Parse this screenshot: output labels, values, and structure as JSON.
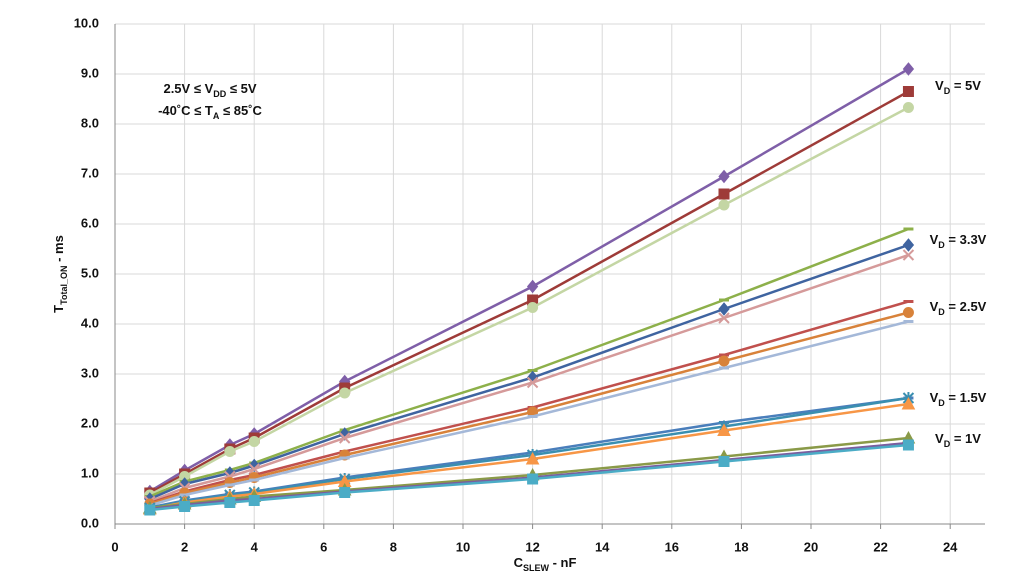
{
  "chart_data": {
    "type": "line",
    "x": [
      1,
      2,
      3.3,
      4,
      6.6,
      12,
      17.5,
      22.8
    ],
    "xlim": [
      0,
      25
    ],
    "xticks": [
      0,
      2,
      4,
      6,
      8,
      10,
      12,
      14,
      16,
      18,
      20,
      22,
      24
    ],
    "ylim": [
      0,
      10
    ],
    "yticks": [
      {
        "value": 0,
        "label": "0.0"
      },
      {
        "value": 1,
        "label": "1.0"
      },
      {
        "value": 2,
        "label": "2.0"
      },
      {
        "value": 3,
        "label": "3.0"
      },
      {
        "value": 4,
        "label": "4.0"
      },
      {
        "value": 5,
        "label": "5.0"
      },
      {
        "value": 6,
        "label": "6.0"
      },
      {
        "value": 7,
        "label": "7.0"
      },
      {
        "value": 8,
        "label": "8.0"
      },
      {
        "value": 9,
        "label": "9.0"
      },
      {
        "value": 10,
        "label": "10.0"
      }
    ],
    "grid": true,
    "xlabel": [
      {
        "text": "C"
      },
      {
        "text": "SLEW",
        "sub": true
      },
      {
        "text": " - nF"
      }
    ],
    "ylabel": [
      {
        "text": "T"
      },
      {
        "text": "Total_ON",
        "sub": true
      },
      {
        "text": " - ms"
      }
    ],
    "annotations": [
      [
        {
          "text": "2.5V ≤ V"
        },
        {
          "text": "DD",
          "sub": true
        },
        {
          "text": " ≤ 5V"
        }
      ],
      [
        {
          "text": "-40˚C ≤ T"
        },
        {
          "text": "A",
          "sub": true
        },
        {
          "text": " ≤ 85˚C"
        }
      ],
      [
        {
          "text": "V"
        },
        {
          "text": "D",
          "sub": true
        },
        {
          "text": " = 5V"
        }
      ],
      [
        {
          "text": "V"
        },
        {
          "text": "D",
          "sub": true
        },
        {
          "text": " = 3.3V"
        }
      ],
      [
        {
          "text": "V"
        },
        {
          "text": "D",
          "sub": true
        },
        {
          "text": " = 2.5V"
        }
      ],
      [
        {
          "text": "V"
        },
        {
          "text": "D",
          "sub": true
        },
        {
          "text": " = 1.5V"
        }
      ],
      [
        {
          "text": "V"
        },
        {
          "text": "D",
          "sub": true
        },
        {
          "text": " = 1V"
        }
      ]
    ],
    "series": [
      {
        "color": "#7f5fa8",
        "marker": "diamond",
        "values": [
          0.65,
          1.07,
          1.58,
          1.8,
          2.85,
          4.75,
          6.95,
          9.1
        ]
      },
      {
        "color": "#9e3b38",
        "marker": "square",
        "values": [
          0.62,
          1.0,
          1.5,
          1.72,
          2.72,
          4.48,
          6.6,
          8.65
        ]
      },
      {
        "color": "#c4d6a4",
        "marker": "circle",
        "values": [
          0.58,
          0.95,
          1.45,
          1.65,
          2.62,
          4.33,
          6.38,
          8.33
        ]
      },
      {
        "color": "#8db04a",
        "marker": "dash",
        "values": [
          0.55,
          0.85,
          1.08,
          1.22,
          1.88,
          3.07,
          4.48,
          5.9
        ]
      },
      {
        "color": "#3f64a0",
        "marker": "diamond",
        "values": [
          0.5,
          0.8,
          1.02,
          1.17,
          1.8,
          2.93,
          4.3,
          5.58
        ]
      },
      {
        "color": "#d59a9a",
        "marker": "x",
        "values": [
          0.45,
          0.72,
          0.95,
          1.1,
          1.72,
          2.83,
          4.12,
          5.38
        ]
      },
      {
        "color": "#c0504d",
        "marker": "dash",
        "values": [
          0.42,
          0.65,
          0.88,
          0.98,
          1.45,
          2.33,
          3.38,
          4.45
        ]
      },
      {
        "color": "#d8823a",
        "marker": "circle",
        "values": [
          0.4,
          0.62,
          0.83,
          0.93,
          1.38,
          2.24,
          3.26,
          4.23
        ]
      },
      {
        "color": "#a4b8d8",
        "marker": "dash",
        "values": [
          0.37,
          0.58,
          0.78,
          0.88,
          1.32,
          2.15,
          3.12,
          4.05
        ]
      },
      {
        "color": "#4a7ebb",
        "marker": "dash",
        "values": [
          0.33,
          0.47,
          0.6,
          0.65,
          0.93,
          1.43,
          2.03,
          2.52
        ]
      },
      {
        "color": "#3a8fb0",
        "marker": "star",
        "values": [
          0.32,
          0.45,
          0.58,
          0.63,
          0.9,
          1.38,
          1.95,
          2.52
        ]
      },
      {
        "color": "#f79646",
        "marker": "triangle",
        "values": [
          0.3,
          0.43,
          0.55,
          0.6,
          0.85,
          1.3,
          1.87,
          2.4
        ]
      },
      {
        "color": "#8a9a48",
        "marker": "triangle",
        "values": [
          0.32,
          0.4,
          0.5,
          0.55,
          0.68,
          0.98,
          1.35,
          1.72
        ]
      },
      {
        "color": "#7a5e9e",
        "marker": "dash",
        "values": [
          0.3,
          0.38,
          0.47,
          0.5,
          0.65,
          0.93,
          1.28,
          1.62
        ]
      },
      {
        "color": "#4bacc6",
        "marker": "square",
        "values": [
          0.28,
          0.35,
          0.43,
          0.47,
          0.63,
          0.9,
          1.25,
          1.58
        ]
      }
    ]
  }
}
